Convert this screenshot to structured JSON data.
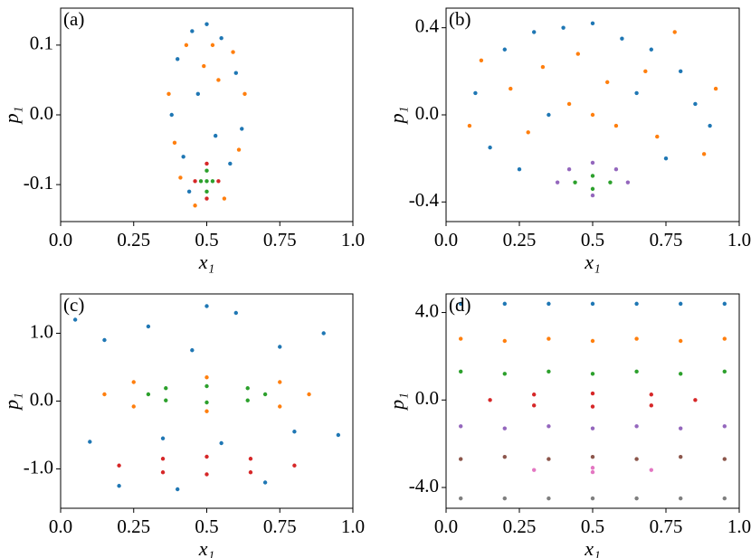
{
  "chart_data": [
    {
      "type": "scatter",
      "title": "(a)",
      "xlabel": "x₁",
      "ylabel": "p₁",
      "xlim": [
        0,
        1
      ],
      "ylim": [
        -0.153,
        0.153
      ],
      "xticks": [
        {
          "value": 0,
          "label": "0.0"
        },
        0.25,
        0.5,
        0.75,
        {
          "value": 1,
          "label": "1.0"
        }
      ],
      "yticks": [
        -0.1,
        {
          "value": 0,
          "label": "0.0"
        },
        0.1
      ],
      "series": [
        {
          "color": "#1f77b4",
          "x": [
            0.4,
            0.45,
            0.55,
            0.6,
            0.38,
            0.62,
            0.5,
            0.42,
            0.58,
            0.47,
            0.53,
            0.44
          ],
          "values": [
            0.08,
            0.12,
            0.11,
            0.06,
            0.0,
            -0.02,
            0.13,
            -0.06,
            -0.07,
            0.03,
            -0.03,
            -0.11
          ]
        },
        {
          "color": "#ff7f0e",
          "x": [
            0.37,
            0.63,
            0.41,
            0.59,
            0.49,
            0.52,
            0.56,
            0.43,
            0.46,
            0.61,
            0.39,
            0.54
          ],
          "values": [
            0.03,
            0.03,
            -0.09,
            0.09,
            0.07,
            0.1,
            -0.12,
            0.1,
            -0.13,
            -0.05,
            -0.04,
            0.05
          ]
        },
        {
          "color": "#2ca02c",
          "x": [
            0.48,
            0.5,
            0.52,
            0.5,
            0.5
          ],
          "values": [
            -0.095,
            -0.08,
            -0.095,
            -0.11,
            -0.095
          ]
        },
        {
          "color": "#d62728",
          "x": [
            0.46,
            0.5,
            0.54,
            0.5
          ],
          "values": [
            -0.095,
            -0.07,
            -0.095,
            -0.12
          ]
        }
      ]
    },
    {
      "type": "scatter",
      "title": "(b)",
      "xlabel": "x₁",
      "ylabel": "p₁",
      "xlim": [
        0,
        1
      ],
      "ylim": [
        -0.49,
        0.49
      ],
      "xticks": [
        {
          "value": 0,
          "label": "0.0"
        },
        0.25,
        0.5,
        0.75,
        {
          "value": 1,
          "label": "1.0"
        }
      ],
      "yticks": [
        -0.4,
        {
          "value": 0,
          "label": "0.0"
        },
        0.4
      ],
      "series": [
        {
          "color": "#1f77b4",
          "x": [
            0.1,
            0.2,
            0.3,
            0.4,
            0.5,
            0.6,
            0.7,
            0.8,
            0.9,
            0.15,
            0.35,
            0.65,
            0.85,
            0.25,
            0.75
          ],
          "values": [
            0.1,
            0.3,
            0.38,
            0.4,
            0.42,
            0.35,
            0.3,
            0.2,
            -0.05,
            -0.15,
            0.0,
            0.1,
            0.05,
            -0.25,
            -0.2
          ]
        },
        {
          "color": "#ff7f0e",
          "x": [
            0.08,
            0.22,
            0.33,
            0.45,
            0.55,
            0.68,
            0.78,
            0.92,
            0.12,
            0.28,
            0.42,
            0.58,
            0.72,
            0.88,
            0.5
          ],
          "values": [
            -0.05,
            0.12,
            0.22,
            0.28,
            0.15,
            0.2,
            0.38,
            0.12,
            0.25,
            -0.08,
            0.05,
            -0.05,
            -0.1,
            -0.18,
            0.0
          ]
        },
        {
          "color": "#2ca02c",
          "x": [
            0.44,
            0.5,
            0.56,
            0.5
          ],
          "values": [
            -0.31,
            -0.28,
            -0.31,
            -0.34
          ]
        },
        {
          "color": "#9467bd",
          "x": [
            0.38,
            0.5,
            0.62,
            0.5,
            0.42,
            0.58
          ],
          "values": [
            -0.31,
            -0.22,
            -0.31,
            -0.37,
            -0.25,
            -0.25
          ]
        }
      ]
    },
    {
      "type": "scatter",
      "title": "(c)",
      "xlabel": "x₁",
      "ylabel": "p₁",
      "xlim": [
        0,
        1
      ],
      "ylim": [
        -1.58,
        1.58
      ],
      "xticks": [
        {
          "value": 0,
          "label": "0.0"
        },
        0.25,
        0.5,
        0.75,
        {
          "value": 1,
          "label": "1.0"
        }
      ],
      "yticks": [
        {
          "value": -1,
          "label": "-1.0"
        },
        {
          "value": 0,
          "label": "0.0"
        },
        {
          "value": 1,
          "label": "1.0"
        }
      ],
      "series": [
        {
          "color": "#1f77b4",
          "x": [
            0.05,
            0.15,
            0.3,
            0.45,
            0.6,
            0.75,
            0.9,
            0.95,
            0.1,
            0.35,
            0.55,
            0.8,
            0.2,
            0.7,
            0.5,
            0.4
          ],
          "values": [
            1.2,
            0.9,
            1.1,
            0.75,
            1.3,
            0.8,
            1.0,
            -0.5,
            -0.6,
            -0.55,
            -0.62,
            -0.45,
            -1.25,
            -1.2,
            1.4,
            -1.3
          ]
        },
        {
          "color": "#ff7f0e",
          "x": [
            0.15,
            0.25,
            0.5,
            0.75,
            0.85,
            0.75,
            0.5,
            0.25
          ],
          "values": [
            0.1,
            0.28,
            0.35,
            0.28,
            0.1,
            -0.08,
            -0.15,
            -0.08
          ]
        },
        {
          "color": "#2ca02c",
          "x": [
            0.3,
            0.36,
            0.5,
            0.64,
            0.7,
            0.64,
            0.5,
            0.36
          ],
          "values": [
            0.1,
            0.19,
            0.22,
            0.19,
            0.1,
            0.01,
            -0.02,
            0.01
          ]
        },
        {
          "color": "#d62728",
          "x": [
            0.2,
            0.35,
            0.5,
            0.65,
            0.8,
            0.65,
            0.5,
            0.35
          ],
          "values": [
            -0.95,
            -0.85,
            -0.82,
            -0.85,
            -0.95,
            -1.05,
            -1.08,
            -1.05
          ]
        }
      ]
    },
    {
      "type": "scatter",
      "title": "(d)",
      "xlabel": "x₁",
      "ylabel": "p₁",
      "xlim": [
        0,
        1
      ],
      "ylim": [
        -4.95,
        4.85
      ],
      "xticks": [
        {
          "value": 0,
          "label": "0.0"
        },
        0.25,
        0.5,
        0.75,
        {
          "value": 1,
          "label": "1.0"
        }
      ],
      "yticks": [
        {
          "value": -4,
          "label": "-4.0"
        },
        {
          "value": 0,
          "label": "0.0"
        },
        {
          "value": 4,
          "label": "4.0"
        }
      ],
      "series": [
        {
          "color": "#1f77b4",
          "x": [
            0.05,
            0.2,
            0.35,
            0.5,
            0.65,
            0.8,
            0.95
          ],
          "values": [
            4.4,
            4.4,
            4.4,
            4.4,
            4.4,
            4.4,
            4.4
          ]
        },
        {
          "color": "#ff7f0e",
          "x": [
            0.05,
            0.2,
            0.35,
            0.5,
            0.65,
            0.8,
            0.95
          ],
          "values": [
            2.8,
            2.7,
            2.8,
            2.7,
            2.8,
            2.7,
            2.8
          ]
        },
        {
          "color": "#2ca02c",
          "x": [
            0.05,
            0.2,
            0.35,
            0.5,
            0.65,
            0.8,
            0.95
          ],
          "values": [
            1.3,
            1.2,
            1.3,
            1.2,
            1.3,
            1.2,
            1.3
          ]
        },
        {
          "color": "#d62728",
          "x": [
            0.15,
            0.3,
            0.5,
            0.7,
            0.85,
            0.7,
            0.5,
            0.3
          ],
          "values": [
            0,
            0.25,
            0.3,
            0.25,
            0,
            -0.25,
            -0.3,
            -0.25
          ]
        },
        {
          "color": "#9467bd",
          "x": [
            0.05,
            0.2,
            0.35,
            0.5,
            0.65,
            0.8,
            0.95
          ],
          "values": [
            -1.2,
            -1.3,
            -1.2,
            -1.3,
            -1.2,
            -1.3,
            -1.2
          ]
        },
        {
          "color": "#8c564b",
          "x": [
            0.05,
            0.2,
            0.35,
            0.5,
            0.65,
            0.8,
            0.95
          ],
          "values": [
            -2.7,
            -2.6,
            -2.7,
            -2.6,
            -2.7,
            -2.6,
            -2.7
          ]
        },
        {
          "color": "#e377c2",
          "x": [
            0.3,
            0.5,
            0.7,
            0.5
          ],
          "values": [
            -3.2,
            -3.1,
            -3.2,
            -3.3
          ]
        },
        {
          "color": "#7f7f7f",
          "x": [
            0.05,
            0.2,
            0.35,
            0.5,
            0.65,
            0.8,
            0.95
          ],
          "values": [
            -4.5,
            -4.5,
            -4.5,
            -4.5,
            -4.5,
            -4.5,
            -4.5
          ]
        }
      ]
    }
  ]
}
